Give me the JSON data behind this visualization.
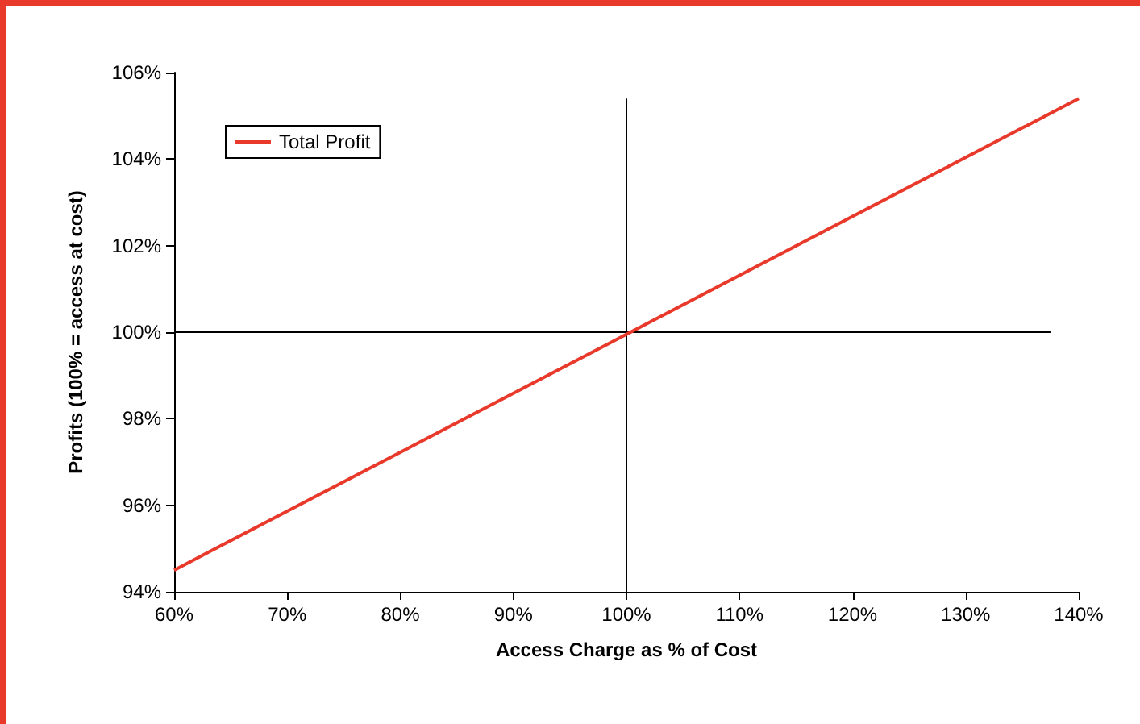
{
  "chart_data": {
    "type": "line",
    "xlabel": "Access Charge as % of Cost",
    "ylabel": "Profits (100% = access at cost)",
    "x": [
      60,
      140
    ],
    "series": [
      {
        "color": "#000000",
        "x": [
          100,
          100
        ],
        "values": [
          94,
          105.4
        ]
      },
      {
        "color": "#000000",
        "x": [
          60,
          137.5
        ],
        "values": [
          100,
          100
        ]
      },
      {
        "name": "Total Profit",
        "color": "#e8392b",
        "values": [
          94.5,
          105.4
        ]
      }
    ],
    "xlim": [
      60,
      140
    ],
    "xticks": [
      {
        "value": 60,
        "label": "60%"
      },
      {
        "value": 70,
        "label": "70%"
      },
      {
        "value": 80,
        "label": "80%"
      },
      {
        "value": 90,
        "label": "90%"
      },
      {
        "value": 100,
        "label": "100%"
      },
      {
        "value": 110,
        "label": "110%"
      },
      {
        "value": 120,
        "label": "120%"
      },
      {
        "value": 130,
        "label": "130%"
      },
      {
        "value": 140,
        "label": "140%"
      }
    ],
    "ylim": [
      94,
      106
    ],
    "yticks": [
      {
        "value": 94,
        "label": "94%"
      },
      {
        "value": 96,
        "label": "96%"
      },
      {
        "value": 98,
        "label": "98%"
      },
      {
        "value": 100,
        "label": "100%"
      },
      {
        "value": 102,
        "label": "102%"
      },
      {
        "value": 104,
        "label": "104%"
      },
      {
        "value": 106,
        "label": "106%"
      }
    ],
    "grid": false,
    "legend": "top left",
    "marker": "none",
    "line_style": "solid"
  }
}
